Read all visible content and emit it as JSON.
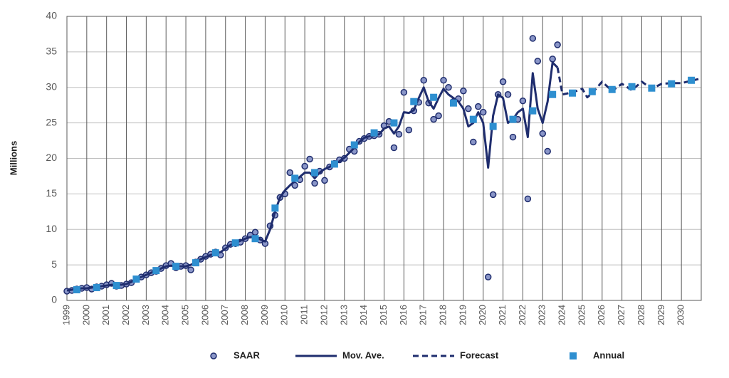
{
  "chart_data": {
    "type": "line",
    "y_label": "Millions",
    "xlim": [
      1999,
      2031
    ],
    "ylim": [
      0,
      40
    ],
    "xticks": [
      1999,
      2000,
      2001,
      2002,
      2003,
      2004,
      2005,
      2006,
      2007,
      2008,
      2009,
      2010,
      2011,
      2012,
      2013,
      2014,
      2015,
      2016,
      2017,
      2018,
      2019,
      2020,
      2021,
      2022,
      2023,
      2024,
      2025,
      2026,
      2027,
      2028,
      2029,
      2030
    ],
    "yticks": [
      0,
      5,
      10,
      15,
      20,
      25,
      30,
      35,
      40
    ],
    "grid": true,
    "series": [
      {
        "name": "SAAR",
        "style": "markers",
        "color": "#1f2d6e",
        "x": [
          1999,
          1999.25,
          1999.5,
          1999.75,
          2000,
          2000.25,
          2000.5,
          2000.75,
          2001,
          2001.25,
          2001.5,
          2001.75,
          2002,
          2002.25,
          2002.5,
          2002.75,
          2003,
          2003.25,
          2003.5,
          2003.75,
          2004,
          2004.25,
          2004.5,
          2004.75,
          2005,
          2005.25,
          2005.5,
          2005.75,
          2006,
          2006.25,
          2006.5,
          2006.75,
          2007,
          2007.25,
          2007.5,
          2007.75,
          2008,
          2008.25,
          2008.5,
          2008.75,
          2009,
          2009.25,
          2009.5,
          2009.75,
          2010,
          2010.25,
          2010.5,
          2010.75,
          2011,
          2011.25,
          2011.5,
          2011.75,
          2012,
          2012.25,
          2012.5,
          2012.75,
          2013,
          2013.25,
          2013.5,
          2013.75,
          2014,
          2014.25,
          2014.5,
          2014.75,
          2015,
          2015.25,
          2015.5,
          2015.75,
          2016,
          2016.25,
          2016.5,
          2016.75,
          2017,
          2017.25,
          2017.5,
          2017.75,
          2018,
          2018.25,
          2018.5,
          2018.75,
          2019,
          2019.25,
          2019.5,
          2019.75,
          2020,
          2020.25,
          2020.5,
          2020.75,
          2021,
          2021.25,
          2021.5,
          2021.75,
          2022,
          2022.25,
          2022.5,
          2022.75,
          2023,
          2023.25,
          2023.5,
          2023.75
        ],
        "values": [
          1.3,
          1.4,
          1.6,
          1.7,
          1.8,
          1.6,
          1.9,
          2.0,
          2.2,
          2.4,
          2.0,
          2.1,
          2.3,
          2.5,
          3.0,
          3.3,
          3.6,
          3.9,
          4.1,
          4.5,
          4.9,
          5.2,
          4.6,
          4.8,
          4.9,
          4.3,
          5.4,
          5.8,
          6.2,
          6.5,
          6.8,
          6.4,
          7.4,
          7.9,
          8.0,
          8.2,
          8.7,
          9.2,
          9.6,
          8.5,
          8.0,
          10.5,
          12.0,
          14.5,
          15.0,
          18.0,
          16.2,
          17.0,
          18.9,
          19.9,
          16.5,
          18.2,
          16.9,
          18.8,
          19.3,
          19.8,
          20.0,
          21.3,
          21.0,
          22.4,
          22.8,
          23.1,
          23.2,
          23.4,
          24.6,
          25.2,
          21.5,
          23.4,
          29.3,
          24.0,
          26.7,
          27.9,
          31.0,
          27.8,
          25.5,
          26.0,
          31.0,
          30.0,
          28.0,
          28.4,
          29.5,
          27.0,
          22.3,
          27.3,
          26.5,
          3.3,
          14.9,
          29.0,
          30.8,
          29.0,
          23.0,
          25.5,
          28.1,
          14.3,
          36.9,
          33.7,
          23.5,
          21.0,
          34.0,
          36.0
        ]
      },
      {
        "name": "Mov. Ave.",
        "style": "solid",
        "color": "#1f2d6e",
        "x": [
          1999,
          1999.25,
          1999.5,
          1999.75,
          2000,
          2000.25,
          2000.5,
          2000.75,
          2001,
          2001.25,
          2001.5,
          2001.75,
          2002,
          2002.25,
          2002.5,
          2002.75,
          2003,
          2003.25,
          2003.5,
          2003.75,
          2004,
          2004.25,
          2004.5,
          2004.75,
          2005,
          2005.25,
          2005.5,
          2005.75,
          2006,
          2006.25,
          2006.5,
          2006.75,
          2007,
          2007.25,
          2007.5,
          2007.75,
          2008,
          2008.25,
          2008.5,
          2008.75,
          2009,
          2009.25,
          2009.5,
          2009.75,
          2010,
          2010.25,
          2010.5,
          2010.75,
          2011,
          2011.25,
          2011.5,
          2011.75,
          2012,
          2012.25,
          2012.5,
          2012.75,
          2013,
          2013.25,
          2013.5,
          2013.75,
          2014,
          2014.25,
          2014.5,
          2014.75,
          2015,
          2015.25,
          2015.5,
          2015.75,
          2016,
          2016.25,
          2016.5,
          2016.75,
          2017,
          2017.25,
          2017.5,
          2017.75,
          2018,
          2018.25,
          2018.5,
          2018.75,
          2019,
          2019.25,
          2019.5,
          2019.75,
          2020,
          2020.25,
          2020.5,
          2020.75,
          2021,
          2021.25,
          2021.5,
          2021.75,
          2022,
          2022.25,
          2022.5,
          2022.75,
          2023,
          2023.25,
          2023.5,
          2023.75
        ],
        "values": [
          1.4,
          1.5,
          1.6,
          1.7,
          1.7,
          1.8,
          1.9,
          2.0,
          2.1,
          2.2,
          2.2,
          2.2,
          2.3,
          2.6,
          3.0,
          3.3,
          3.6,
          3.9,
          4.2,
          4.5,
          4.8,
          4.9,
          4.8,
          4.8,
          4.8,
          5.0,
          5.4,
          5.8,
          6.1,
          6.4,
          6.6,
          6.8,
          7.3,
          7.8,
          8.1,
          8.4,
          8.7,
          8.9,
          9.0,
          8.6,
          8.3,
          10,
          12.5,
          14.5,
          15.5,
          16.2,
          16.8,
          17.4,
          18.0,
          18.0,
          17.2,
          18.0,
          18.5,
          18.8,
          19.2,
          19.6,
          20.1,
          20.8,
          21.5,
          22.3,
          22.9,
          23.1,
          23.2,
          23.4,
          24.2,
          24.5,
          23.5,
          24.5,
          26.5,
          26.4,
          26.8,
          28.5,
          30.0,
          28.0,
          27.0,
          28.5,
          29.8,
          29.0,
          28.5,
          28.0,
          27.0,
          24.5,
          25.0,
          26.5,
          25.0,
          18.7,
          26.0,
          29.0,
          28.5,
          25.0,
          25.5,
          26.5,
          27.0,
          23.0,
          32.0,
          27.0,
          25.0,
          28.0,
          33.5,
          32.8
        ]
      },
      {
        "name": "Forecast",
        "style": "dashed",
        "color": "#1f2d6e",
        "x": [
          2023.75,
          2024,
          2024.5,
          2025,
          2025.25,
          2025.5,
          2026,
          2026.5,
          2027,
          2027.5,
          2028,
          2028.5,
          2029,
          2029.5,
          2030,
          2030.9
        ],
        "values": [
          32.8,
          29.0,
          29.3,
          29.8,
          28.6,
          29.2,
          30.8,
          29.5,
          30.5,
          29.6,
          30.8,
          29.8,
          30.5,
          30.6,
          30.6,
          31.2
        ]
      },
      {
        "name": "Annual",
        "style": "squares",
        "color": "#2e8fd0",
        "x": [
          1999.5,
          2000.5,
          2001.5,
          2002.5,
          2003.5,
          2004.5,
          2005.5,
          2006.5,
          2007.5,
          2008.5,
          2009.5,
          2010.5,
          2011.5,
          2012.5,
          2013.5,
          2014.5,
          2015.5,
          2016.5,
          2017.5,
          2018.5,
          2019.5,
          2020.5,
          2021.5,
          2022.5,
          2023.5,
          2024.5,
          2025.5,
          2026.5,
          2027.5,
          2028.5,
          2029.5,
          2030.5
        ],
        "values": [
          1.5,
          1.8,
          2.1,
          3.0,
          4.2,
          4.8,
          5.3,
          6.7,
          8.1,
          8.7,
          13.0,
          17.2,
          18.0,
          19.2,
          21.9,
          23.6,
          25.0,
          28.0,
          28.6,
          27.8,
          25.5,
          24.5,
          25.5,
          26.7,
          29.0,
          29.2,
          29.4,
          29.7,
          30.1,
          29.9,
          30.5,
          31.0
        ]
      }
    ]
  }
}
